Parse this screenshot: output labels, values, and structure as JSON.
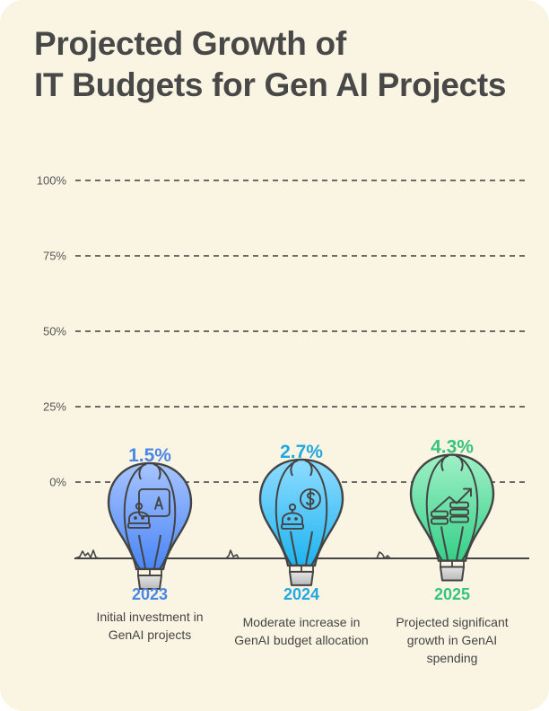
{
  "title": {
    "line1": "Projected Growth of",
    "line2": "IT Budgets for Gen AI Projects"
  },
  "chart_data": {
    "type": "bar",
    "title": "Projected Growth of IT Budgets for Gen AI Projects",
    "xlabel": "",
    "ylabel": "",
    "ylim": [
      0,
      100
    ],
    "yticks": [
      0,
      25,
      50,
      75,
      100
    ],
    "ytick_labels": [
      "0%",
      "25%",
      "50%",
      "75%",
      "100%"
    ],
    "grid": "horizontal-dashed",
    "categories": [
      "2023",
      "2024",
      "2025"
    ],
    "values": [
      1.5,
      2.7,
      4.3
    ],
    "value_labels": [
      "1.5%",
      "2.7%",
      "4.3%"
    ],
    "descriptions": [
      "Initial investment in GenAI projects",
      "Moderate increase in GenAI budget allocation",
      "Projected significant growth in GenAI spending"
    ],
    "colors": [
      "#4a86e8",
      "#21a8e0",
      "#36c47c"
    ],
    "icons": [
      "robot-presentation-icon",
      "robot-dollar-icon",
      "growth-coins-icon"
    ],
    "mark": "hot-air-balloon"
  }
}
